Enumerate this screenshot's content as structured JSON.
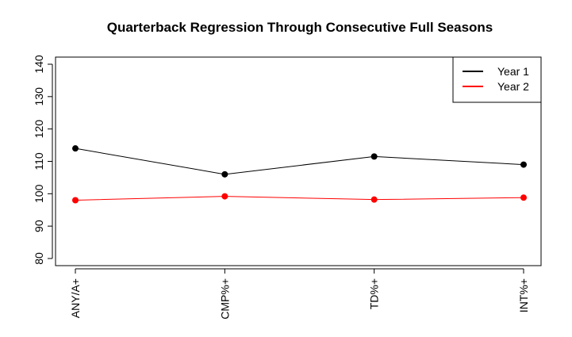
{
  "chart_data": {
    "type": "line",
    "title": "Quarterback Regression Through Consecutive Full Seasons",
    "xlabel": "",
    "ylabel": "",
    "categories": [
      "ANY/A+",
      "CMP%+",
      "TD%+",
      "INT%+"
    ],
    "series": [
      {
        "name": "Year 1",
        "color": "#000000",
        "values": [
          114,
          106,
          111.5,
          109
        ]
      },
      {
        "name": "Year 2",
        "color": "#ff0000",
        "values": [
          98,
          99.2,
          98.2,
          98.8
        ]
      }
    ],
    "ylim": [
      80,
      140
    ],
    "yticks": [
      80,
      90,
      100,
      110,
      120,
      130,
      140
    ],
    "grid": false,
    "legend_position": "top-right"
  }
}
